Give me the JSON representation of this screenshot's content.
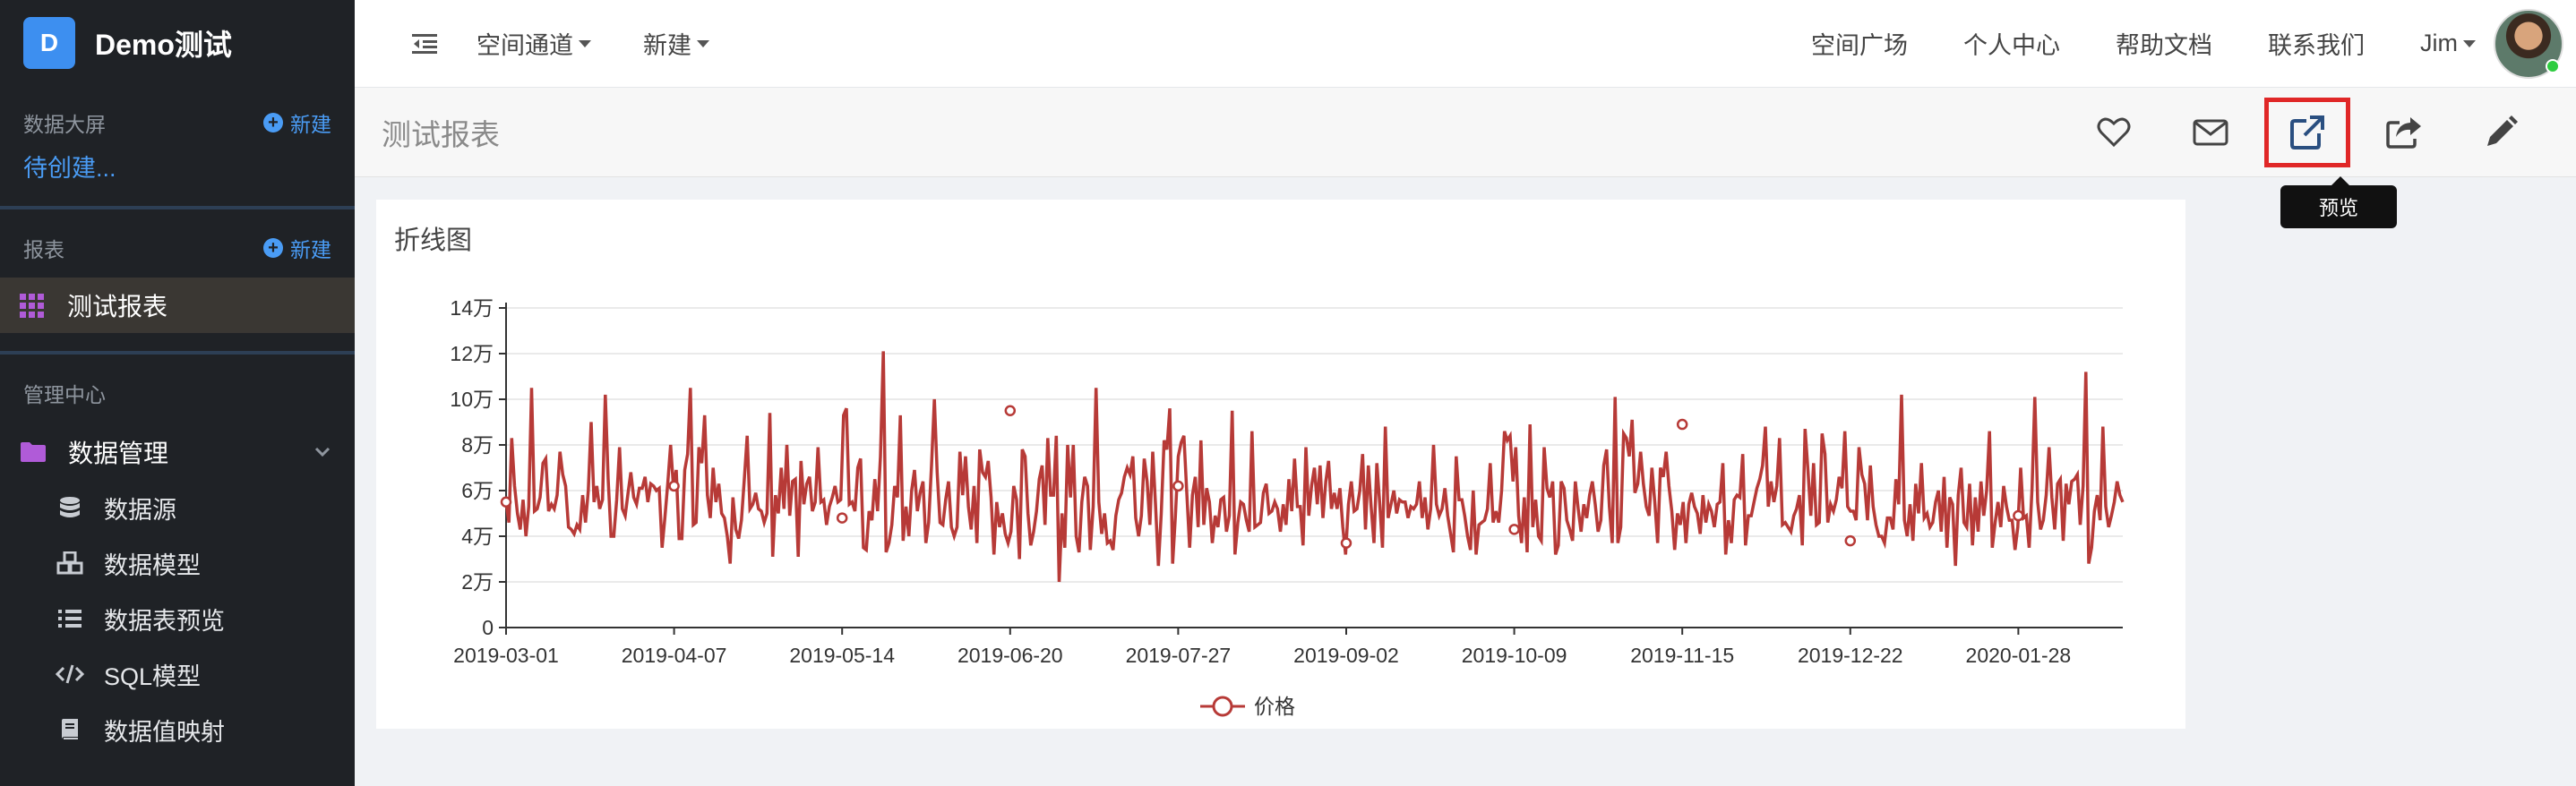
{
  "brand": {
    "logo_letter": "D",
    "name": "Demo测试"
  },
  "sidebar": {
    "dashboard_section": {
      "title": "数据大屏",
      "new_label": "新建",
      "pending": "待创建..."
    },
    "report_section": {
      "title": "报表",
      "new_label": "新建",
      "active_item": "测试报表"
    },
    "admin_section": {
      "title": "管理中心",
      "folder": "数据管理",
      "items": [
        {
          "icon": "database-icon",
          "label": "数据源"
        },
        {
          "icon": "cubes-icon",
          "label": "数据模型"
        },
        {
          "icon": "list-icon",
          "label": "数据表预览"
        },
        {
          "icon": "code-icon",
          "label": "SQL模型"
        },
        {
          "icon": "book-icon",
          "label": "数据值映射"
        }
      ]
    }
  },
  "topbar": {
    "nav": [
      "空间通道",
      "新建"
    ],
    "links": [
      "空间广场",
      "个人中心",
      "帮助文档",
      "联系我们"
    ],
    "user": "Jim"
  },
  "page": {
    "title": "测试报表",
    "tooltip": "预览"
  },
  "colors": {
    "series": "#b73a37",
    "accent": "#4a9cf5",
    "highlight": "#e02727"
  },
  "chart_data": {
    "type": "line",
    "title": "折线图",
    "xlabel": "",
    "ylabel": "",
    "x_tick_labels": [
      "2019-03-01",
      "2019-04-07",
      "2019-05-14",
      "2019-06-20",
      "2019-07-27",
      "2019-09-02",
      "2019-10-09",
      "2019-11-15",
      "2019-12-22",
      "2020-01-28"
    ],
    "y_tick_labels": [
      "0",
      "2万",
      "4万",
      "6万",
      "8万",
      "10万",
      "12万",
      "14万"
    ],
    "ylim": [
      0,
      140000
    ],
    "x_start": "2019-03-01",
    "x_end": "2020-02-20",
    "legend": {
      "position": "bottom-center"
    },
    "series": [
      {
        "name": "价格",
        "values": [
          55000,
          46000,
          83000,
          62000,
          50000,
          43000,
          56000,
          40000,
          53000,
          105000,
          51000,
          52000,
          57000,
          72000,
          74000,
          51000,
          54000,
          52000,
          58000,
          77000,
          67000,
          62000,
          44000,
          43000,
          41000,
          45000,
          43000,
          58000,
          46000,
          60000,
          90000,
          55000,
          62000,
          52000,
          56000,
          102000,
          65000,
          40000,
          40000,
          56000,
          79000,
          52000,
          49000,
          59000,
          68000,
          57000,
          54000,
          61000,
          61000,
          66000,
          55000,
          63000,
          62000,
          60000,
          61000,
          35000,
          48000,
          63000,
          80000,
          62000,
          69000,
          39000,
          39000,
          69000,
          76000,
          105000,
          45000,
          46000,
          79000,
          72000,
          93000,
          58000,
          48000,
          70000,
          55000,
          63000,
          50000,
          48000,
          40000,
          28000,
          57000,
          43000,
          39000,
          47000,
          65000,
          84000,
          52000,
          54000,
          59000,
          52000,
          51000,
          46000,
          50000,
          94000,
          31000,
          58000,
          50000,
          70000,
          52000,
          80000,
          49000,
          64000,
          65000,
          31000,
          73000,
          54000,
          63000,
          66000,
          51000,
          55000,
          79000,
          55000,
          56000,
          45000,
          53000,
          57000,
          62000,
          55000,
          56000,
          93000,
          96000,
          54000,
          55000,
          51000,
          70000,
          74000,
          35000,
          34000,
          51000,
          47000,
          65000,
          51000,
          75000,
          121000,
          33000,
          37000,
          45000,
          62000,
          57000,
          93000,
          38000,
          53000,
          40000,
          60000,
          69000,
          51000,
          59000,
          64000,
          37000,
          46000,
          71000,
          100000,
          68000,
          46000,
          45000,
          56000,
          64000,
          44000,
          40000,
          44000,
          77000,
          58000,
          75000,
          53000,
          43000,
          62000,
          37000,
          78000,
          68000,
          66000,
          73000,
          57000,
          32000,
          55000,
          44000,
          50000,
          41000,
          37000,
          42000,
          62000,
          56000,
          30000,
          78000,
          75000,
          50000,
          36000,
          42000,
          51000,
          65000,
          71000,
          45000,
          83000,
          58000,
          58000,
          84000,
          20000,
          50000,
          35000,
          80000,
          57000,
          80000,
          40000,
          33000,
          55000,
          66000,
          62000,
          34000,
          53000,
          105000,
          55000,
          41000,
          50000,
          37000,
          38000,
          34000,
          49000,
          56000,
          59000,
          66000,
          70000,
          67000,
          75000,
          48000,
          40000,
          49000,
          74000,
          64000,
          45000,
          77000,
          53000,
          27000,
          50000,
          82000,
          78000,
          96000,
          28000,
          49000,
          75000,
          81000,
          84000,
          59000,
          35000,
          58000,
          66000,
          44000,
          82000,
          45000,
          61000,
          55000,
          37000,
          49000,
          44000,
          56000,
          57000,
          42000,
          49000,
          95000,
          32000,
          46000,
          55000,
          54000,
          47000,
          42000,
          86000,
          44000,
          45000,
          46000,
          59000,
          63000,
          50000,
          51000,
          55000,
          52000,
          42000,
          54000,
          45000,
          65000,
          51000,
          74000,
          53000,
          53000,
          36000,
          79000,
          49000,
          62000,
          70000,
          54000,
          71000,
          48000,
          64000,
          73000,
          52000,
          59000,
          52000,
          61000,
          44000,
          32000,
          54000,
          64000,
          51000,
          52000,
          60000,
          76000,
          43000,
          71000,
          53000,
          37000,
          72000,
          55000,
          35000,
          88000,
          48000,
          54000,
          60000,
          50000,
          56000,
          55000,
          55000,
          48000,
          53000,
          52000,
          54000,
          64000,
          48000,
          57000,
          43000,
          52000,
          80000,
          54000,
          49000,
          52000,
          61000,
          49000,
          41000,
          33000,
          75000,
          56000,
          56000,
          49000,
          40000,
          34000,
          60000,
          32000,
          45000,
          46000,
          47000,
          52000,
          72000,
          46000,
          51000,
          46000,
          60000,
          86000,
          82000,
          84000,
          64000,
          79000,
          49000,
          37000,
          57000,
          33000,
          89000,
          44000,
          56000,
          40000,
          38000,
          79000,
          61000,
          57000,
          64000,
          32000,
          36000,
          64000,
          61000,
          47000,
          43000,
          38000,
          64000,
          52000,
          42000,
          54000,
          48000,
          58000,
          64000,
          54000,
          42000,
          47000,
          71000,
          78000,
          53000,
          37000,
          101000,
          37000,
          44000,
          85000,
          83000,
          75000,
          91000,
          59000,
          63000,
          77000,
          63000,
          53000,
          49000,
          70000,
          55000,
          37000,
          70000,
          66000,
          77000,
          62000,
          51000,
          34000,
          50000,
          45000,
          55000,
          37000,
          54000,
          59000,
          53000,
          50000,
          41000,
          58000,
          46000,
          54000,
          51000,
          44000,
          54000,
          55000,
          72000,
          32000,
          47000,
          37000,
          56000,
          58000,
          57000,
          76000,
          36000,
          49000,
          49000,
          55000,
          61000,
          65000,
          71000,
          88000,
          53000,
          64000,
          55000,
          62000,
          83000,
          45000,
          46000,
          44000,
          42000,
          49000,
          52000,
          58000,
          36000,
          87000,
          69000,
          49000,
          72000,
          45000,
          46000,
          85000,
          76000,
          46000,
          54000,
          51000,
          56000,
          66000,
          61000,
          86000,
          53000,
          51000,
          51000,
          47000,
          79000,
          67000,
          63000,
          47000,
          71000,
          53000,
          45000,
          40000,
          40000,
          37000,
          48000,
          48000,
          43000,
          65000,
          54000,
          102000,
          47000,
          40000,
          54000,
          38000,
          63000,
          50000,
          72000,
          48000,
          50000,
          44000,
          46000,
          55000,
          60000,
          42000,
          66000,
          35000,
          57000,
          54000,
          27000,
          58000,
          70000,
          46000,
          44000,
          63000,
          36000,
          57000,
          42000,
          64000,
          49000,
          60000,
          86000,
          35000,
          46000,
          55000,
          44000,
          62000,
          53000,
          47000,
          47000,
          34000,
          44000,
          70000,
          48000,
          49000,
          35000,
          61000,
          101000,
          55000,
          43000,
          47000,
          58000,
          79000,
          57000,
          43000,
          63000,
          65000,
          38000,
          63000,
          54000,
          64000,
          65000,
          67000,
          45000,
          62000,
          112000,
          28000,
          35000,
          51000,
          58000,
          47000,
          88000,
          53000,
          44000,
          49000,
          55000,
          64000,
          58000,
          55000
        ]
      }
    ],
    "markers": [
      {
        "x": "2019-03-01",
        "y": 55000
      },
      {
        "x": "2019-04-07",
        "y": 62000
      },
      {
        "x": "2019-05-14",
        "y": 48000
      },
      {
        "x": "2019-06-20",
        "y": 95000
      },
      {
        "x": "2019-07-27",
        "y": 62000
      },
      {
        "x": "2019-09-02",
        "y": 37000
      },
      {
        "x": "2019-10-09",
        "y": 43000
      },
      {
        "x": "2019-11-15",
        "y": 89000
      },
      {
        "x": "2019-12-22",
        "y": 38000
      },
      {
        "x": "2020-01-28",
        "y": 49000
      }
    ]
  }
}
